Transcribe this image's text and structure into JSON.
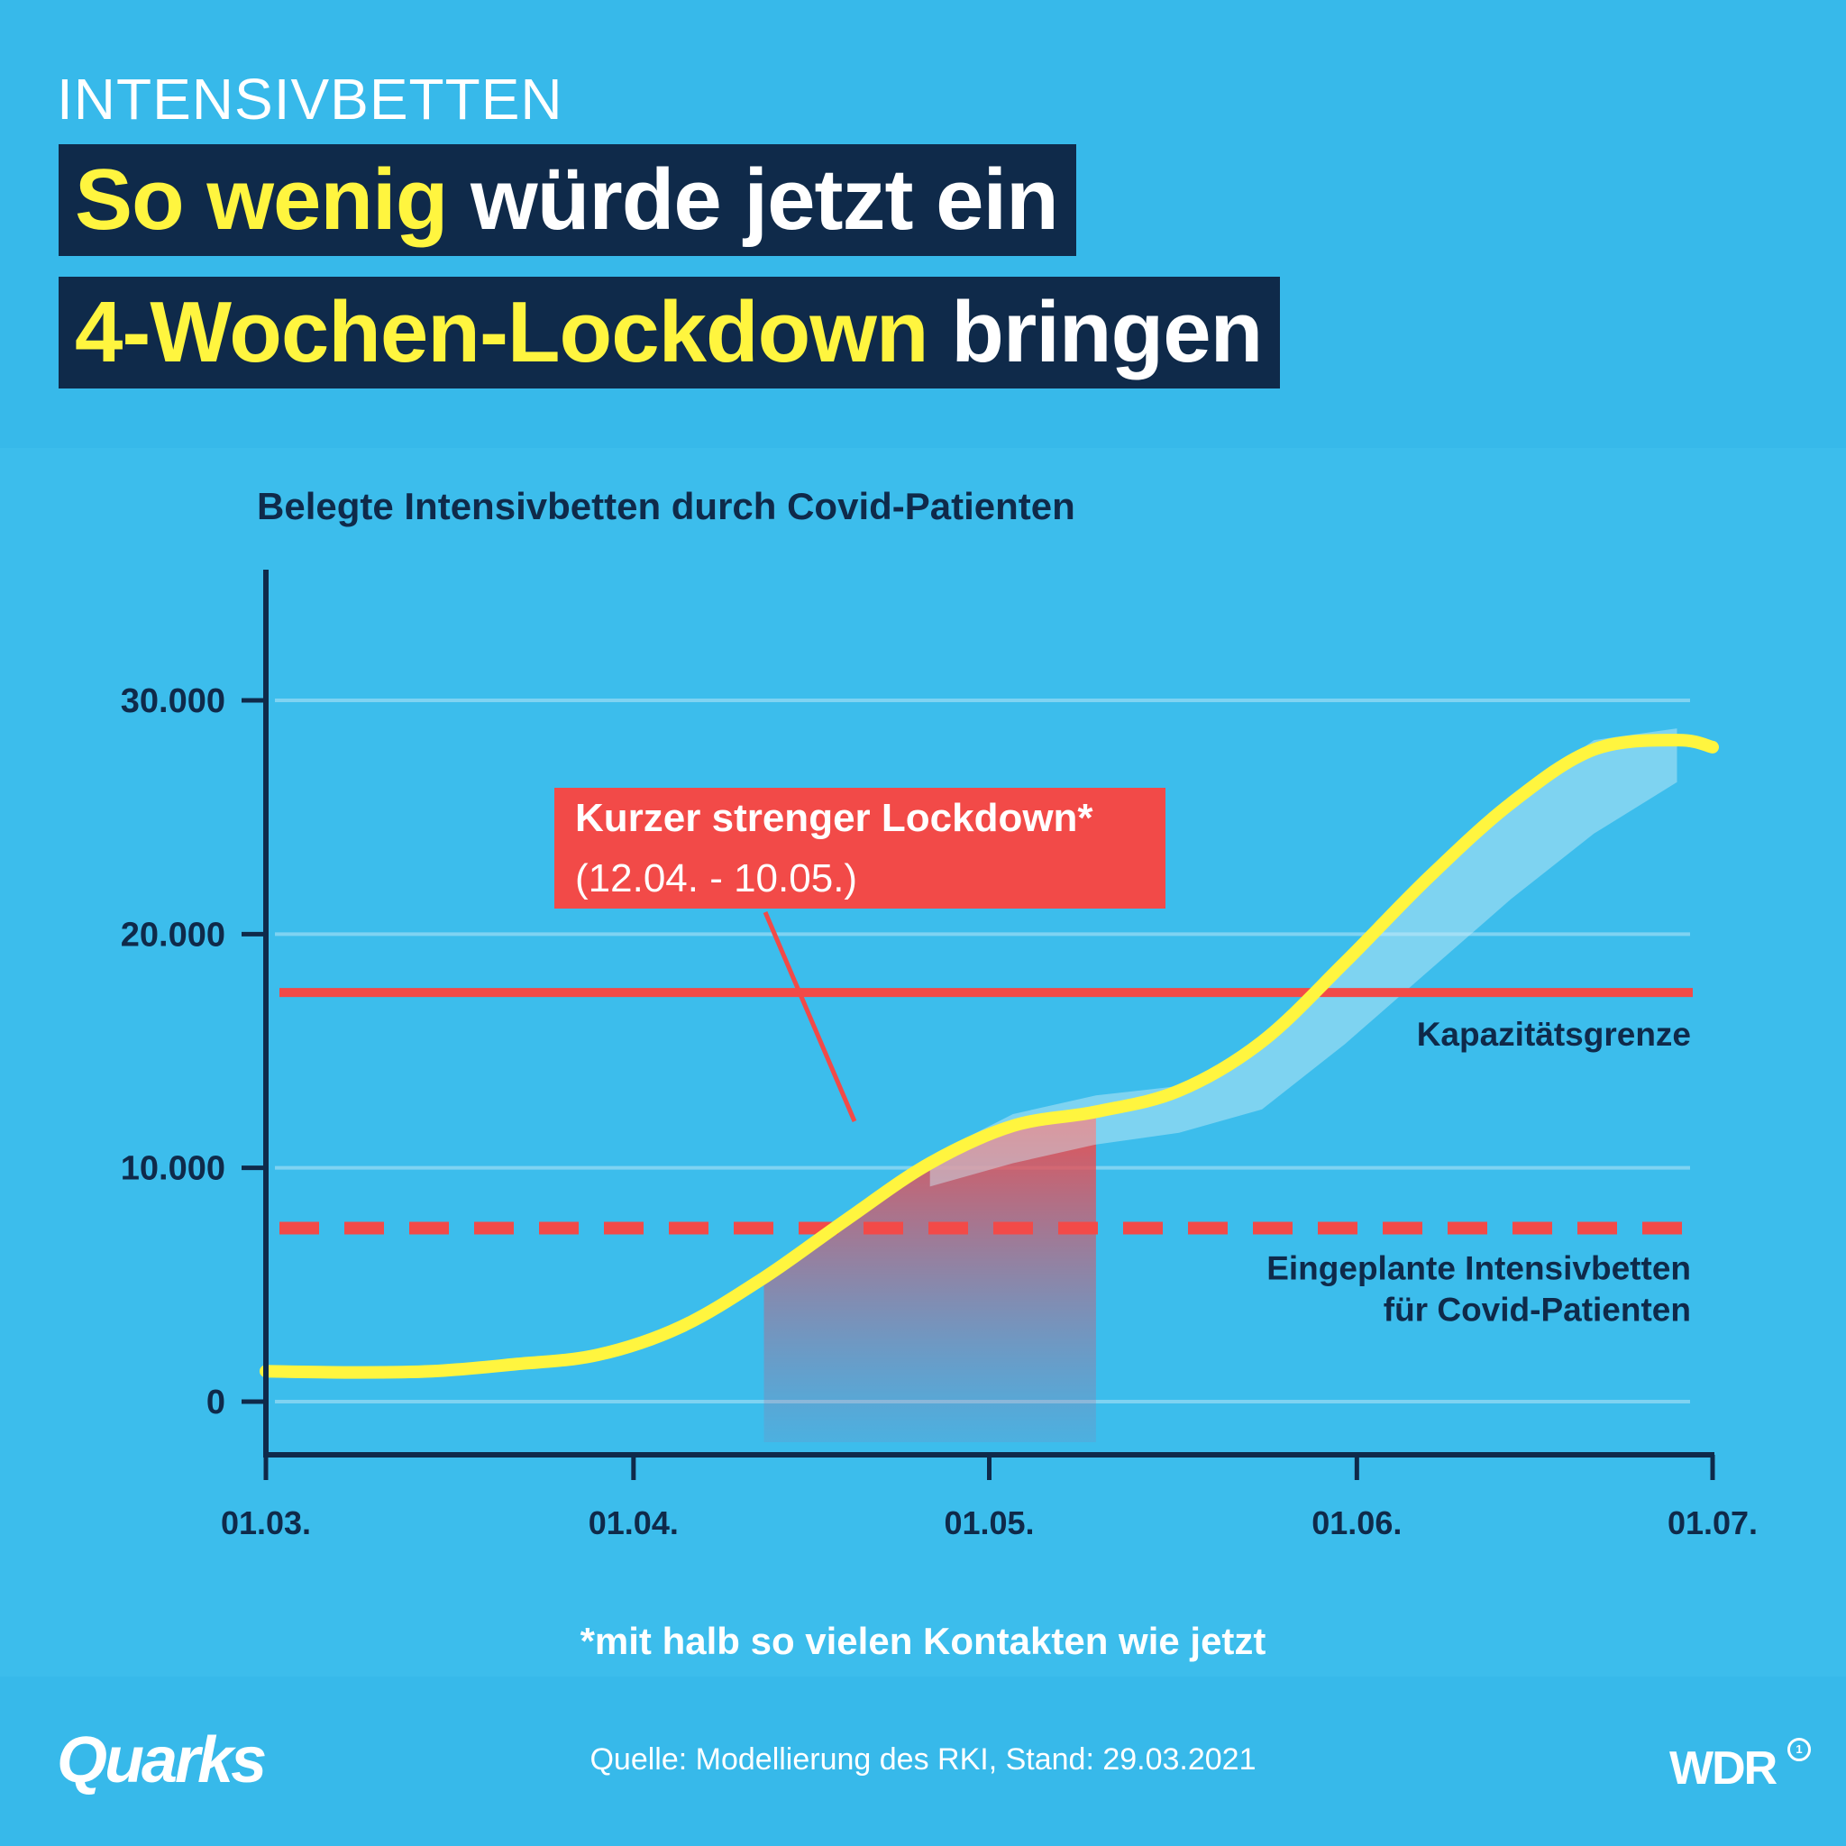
{
  "header": {
    "kicker": "INTENSIVBETTEN",
    "title_line1_highlight": "So wenig",
    "title_line1_rest": "würde jetzt ein",
    "title_line2_highlight": "4-Wochen-Lockdown",
    "title_line2_rest": "bringen"
  },
  "chart_data": {
    "type": "line",
    "title": "Belegte Intensivbetten durch Covid-Patienten",
    "ylim": [
      0,
      35000
    ],
    "yticks": [
      {
        "value": 0,
        "label": "0"
      },
      {
        "value": 10000,
        "label": "10.000"
      },
      {
        "value": 20000,
        "label": "20.000"
      },
      {
        "value": 30000,
        "label": "30.000"
      }
    ],
    "xticks": [
      {
        "value": "2021-03-01",
        "label": "01.03."
      },
      {
        "value": "2021-04-01",
        "label": "01.04."
      },
      {
        "value": "2021-05-01",
        "label": "01.05."
      },
      {
        "value": "2021-06-01",
        "label": "01.06."
      },
      {
        "value": "2021-07-01",
        "label": "01.07."
      }
    ],
    "grid": true,
    "series": [
      {
        "color": "#fff53f",
        "points": [
          [
            "2021-03-01",
            1300
          ],
          [
            "2021-03-08",
            1250
          ],
          [
            "2021-03-15",
            1300
          ],
          [
            "2021-03-22",
            1600
          ],
          [
            "2021-03-29",
            2000
          ],
          [
            "2021-04-05",
            3200
          ],
          [
            "2021-04-12",
            5300
          ],
          [
            "2021-04-19",
            7800
          ],
          [
            "2021-04-26",
            10200
          ],
          [
            "2021-05-03",
            11800
          ],
          [
            "2021-05-10",
            12400
          ],
          [
            "2021-05-17",
            13300
          ],
          [
            "2021-05-24",
            15400
          ],
          [
            "2021-05-31",
            18800
          ],
          [
            "2021-06-07",
            22400
          ],
          [
            "2021-06-14",
            25600
          ],
          [
            "2021-06-21",
            27900
          ],
          [
            "2021-06-28",
            28300
          ],
          [
            "2021-07-01",
            28000
          ]
        ]
      }
    ],
    "shaded_band": {
      "color": "#cfeef8",
      "upper": [
        [
          "2021-04-26",
          10500
        ],
        [
          "2021-05-03",
          12300
        ],
        [
          "2021-05-10",
          13100
        ],
        [
          "2021-05-17",
          13500
        ],
        [
          "2021-05-24",
          15400
        ],
        [
          "2021-05-31",
          18800
        ],
        [
          "2021-06-07",
          22400
        ],
        [
          "2021-06-14",
          25800
        ],
        [
          "2021-06-21",
          28300
        ],
        [
          "2021-06-28",
          28800
        ]
      ],
      "lower": [
        [
          "2021-04-26",
          9200
        ],
        [
          "2021-05-03",
          10200
        ],
        [
          "2021-05-10",
          11000
        ],
        [
          "2021-05-17",
          11500
        ],
        [
          "2021-05-24",
          12500
        ],
        [
          "2021-05-31",
          15300
        ],
        [
          "2021-06-07",
          18400
        ],
        [
          "2021-06-14",
          21500
        ],
        [
          "2021-06-21",
          24300
        ],
        [
          "2021-06-28",
          26500
        ]
      ]
    },
    "reference_lines": [
      {
        "label": "Kapazitätsgrenze",
        "value": 17500,
        "style": "solid",
        "color": "#f24a48"
      },
      {
        "label_lines": [
          "Eingeplante Intensivbetten",
          "für Covid-Patienten"
        ],
        "value": 7500,
        "style": "dashed",
        "color": "#f24a48"
      }
    ],
    "highlight_period": {
      "start": "2021-04-12",
      "end": "2021-05-10",
      "label_line1": "Kurzer strenger Lockdown*",
      "label_line2": "(12.04. - 10.05.)",
      "color": "#f24a48"
    }
  },
  "footnote": "*mit halb so vielen Kontakten wie jetzt",
  "source": "Quelle: Modellierung des RKI, Stand: 29.03.2021",
  "logos": {
    "left": "Quarks",
    "right": "WDR",
    "right_mark": "1"
  }
}
